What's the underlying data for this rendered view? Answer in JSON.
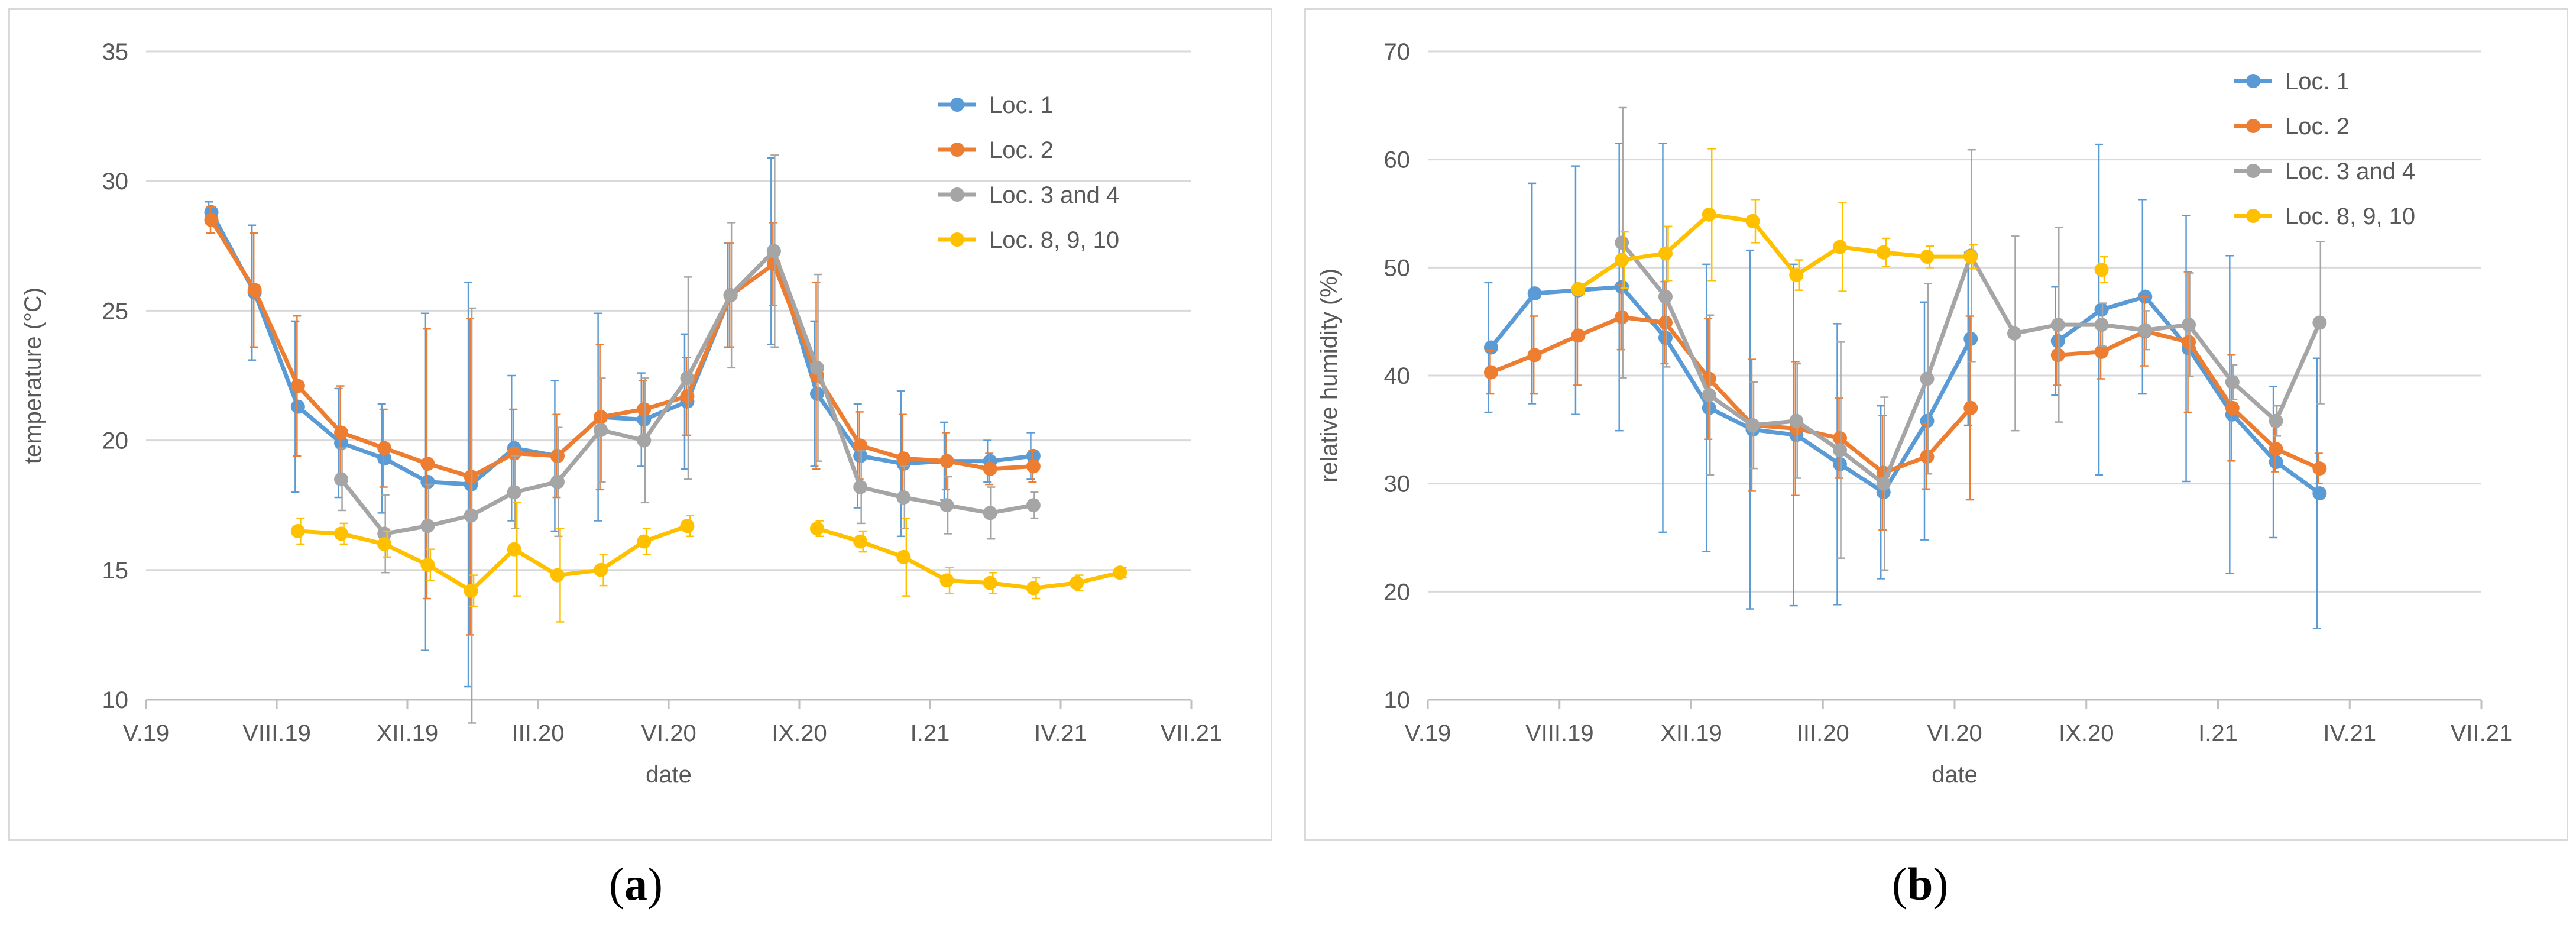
{
  "captions": {
    "a": "a",
    "b": "b"
  },
  "chart_data": [
    {
      "type": "line",
      "panel": "a",
      "title": "",
      "xlabel": "date",
      "ylabel": "temperature (°C)",
      "ylim": [
        10,
        35
      ],
      "yticks": [
        10,
        15,
        20,
        25,
        30,
        35
      ],
      "xticks": [
        "V.19",
        "VIII.19",
        "XII.19",
        "III.20",
        "VI.20",
        "IX.20",
        "I.21",
        "IV.21",
        "VII.21"
      ],
      "x": [
        1,
        2,
        3,
        4,
        5,
        6,
        7,
        8,
        9,
        10,
        11,
        12,
        13,
        14,
        15,
        16,
        17,
        18,
        19,
        20,
        21,
        22
      ],
      "legend_position": "top-right",
      "series": [
        {
          "name": "Loc. 1",
          "color": "#5b9bd5",
          "values": [
            28.8,
            25.7,
            21.3,
            19.9,
            19.3,
            18.4,
            18.3,
            19.7,
            19.4,
            20.9,
            20.8,
            21.5,
            25.6,
            27.3,
            21.8,
            19.4,
            19.1,
            19.2,
            19.2,
            19.4,
            null,
            null
          ],
          "errors": [
            0.4,
            2.6,
            3.3,
            2.1,
            2.1,
            6.5,
            7.8,
            2.8,
            2.9,
            4.0,
            1.8,
            2.6,
            2.0,
            3.6,
            2.8,
            2.0,
            2.8,
            1.5,
            0.8,
            0.9,
            null,
            null
          ]
        },
        {
          "name": "Loc. 2",
          "color": "#ed7d31",
          "values": [
            28.5,
            25.8,
            22.1,
            20.3,
            19.7,
            19.1,
            18.6,
            19.5,
            19.4,
            20.9,
            21.2,
            21.7,
            25.6,
            26.8,
            22.5,
            19.8,
            19.3,
            19.2,
            18.9,
            19.0,
            null,
            null
          ],
          "errors": [
            0.5,
            2.2,
            2.7,
            1.8,
            1.5,
            5.2,
            6.1,
            1.7,
            1.6,
            2.8,
            1.1,
            1.5,
            2.0,
            1.6,
            3.6,
            1.3,
            1.7,
            1.1,
            0.6,
            0.6,
            null,
            null
          ]
        },
        {
          "name": "Loc. 3 and 4",
          "color": "#a5a5a5",
          "values": [
            null,
            null,
            null,
            18.5,
            16.4,
            16.7,
            17.1,
            18.0,
            18.4,
            20.4,
            20.0,
            22.4,
            25.6,
            27.3,
            22.8,
            18.2,
            17.8,
            17.5,
            17.2,
            17.5,
            null,
            null
          ],
          "errors": [
            null,
            null,
            null,
            1.2,
            1.5,
            1.6,
            8.0,
            1.4,
            2.1,
            2.0,
            2.4,
            3.9,
            2.8,
            3.7,
            3.6,
            1.4,
            1.2,
            1.1,
            1.0,
            0.5,
            null,
            null
          ]
        },
        {
          "name": "Loc. 8, 9, 10",
          "color": "#ffc000",
          "values": [
            null,
            null,
            16.5,
            16.4,
            16.0,
            15.2,
            14.2,
            15.8,
            14.8,
            15.0,
            16.1,
            16.7,
            null,
            null,
            16.6,
            16.1,
            15.5,
            14.6,
            14.5,
            14.3,
            14.5,
            14.9
          ],
          "errors": [
            null,
            null,
            0.5,
            0.4,
            0.5,
            0.6,
            0.6,
            1.8,
            1.8,
            0.6,
            0.5,
            0.4,
            null,
            null,
            0.3,
            0.4,
            1.5,
            0.5,
            0.4,
            0.4,
            0.3,
            0.2
          ]
        }
      ]
    },
    {
      "type": "line",
      "panel": "b",
      "title": "",
      "xlabel": "date",
      "ylabel": "relative humidity (%)",
      "ylim": [
        10,
        70
      ],
      "yticks": [
        10,
        20,
        30,
        40,
        50,
        60,
        70
      ],
      "xticks": [
        "V.19",
        "VIII.19",
        "XII.19",
        "III.20",
        "VI.20",
        "IX.20",
        "I.21",
        "IV.21",
        "VII.21"
      ],
      "x": [
        1,
        2,
        3,
        4,
        5,
        6,
        7,
        8,
        9,
        10,
        11,
        12,
        13,
        14,
        15,
        16,
        17,
        18,
        19,
        20
      ],
      "legend_position": "top-right",
      "series": [
        {
          "name": "Loc. 1",
          "color": "#5b9bd5",
          "values": [
            42.6,
            47.6,
            47.9,
            48.2,
            43.5,
            37.0,
            35.0,
            34.5,
            31.8,
            29.2,
            35.8,
            43.4,
            null,
            43.2,
            46.1,
            47.3,
            42.5,
            36.4,
            32.0,
            29.1
          ],
          "errors": [
            6.0,
            10.2,
            11.5,
            13.3,
            18.0,
            13.3,
            16.6,
            15.8,
            13.0,
            8.0,
            11.0,
            8.0,
            null,
            5.0,
            15.3,
            9.0,
            12.3,
            14.7,
            7.0,
            12.5
          ]
        },
        {
          "name": "Loc. 2",
          "color": "#ed7d31",
          "values": [
            40.3,
            41.9,
            43.7,
            45.4,
            44.9,
            39.7,
            35.4,
            35.1,
            34.2,
            31.0,
            32.5,
            37.0,
            null,
            41.9,
            42.2,
            44.1,
            43.1,
            37.0,
            33.2,
            31.4
          ],
          "errors": [
            2.0,
            3.6,
            4.6,
            3.0,
            3.8,
            5.6,
            6.1,
            6.2,
            3.7,
            5.3,
            3.0,
            8.5,
            null,
            2.8,
            2.5,
            3.2,
            6.5,
            4.9,
            2.1,
            1.4
          ]
        },
        {
          "name": "Loc. 3 and 4",
          "color": "#a5a5a5",
          "values": [
            null,
            null,
            null,
            52.3,
            47.3,
            38.2,
            35.4,
            35.8,
            33.1,
            30.0,
            39.7,
            51.1,
            43.9,
            44.7,
            44.7,
            44.2,
            44.7,
            39.4,
            35.8,
            44.9
          ],
          "errors": [
            null,
            null,
            null,
            12.5,
            6.5,
            7.4,
            4.0,
            5.3,
            10.0,
            8.0,
            8.8,
            9.8,
            9.0,
            9.0,
            2.0,
            1.8,
            4.8,
            1.6,
            1.4,
            7.5
          ]
        },
        {
          "name": "Loc. 8, 9, 10",
          "color": "#ffc000",
          "values": [
            null,
            null,
            48.0,
            50.7,
            51.3,
            54.9,
            54.3,
            49.3,
            51.9,
            51.4,
            51.0,
            51.0,
            null,
            null,
            49.8,
            null,
            null,
            null,
            null,
            null
          ],
          "errors": [
            null,
            null,
            0.5,
            2.6,
            2.5,
            6.1,
            2.0,
            1.4,
            4.1,
            1.3,
            1.0,
            1.1,
            null,
            null,
            1.2,
            null,
            null,
            null,
            null,
            null
          ]
        }
      ]
    }
  ]
}
